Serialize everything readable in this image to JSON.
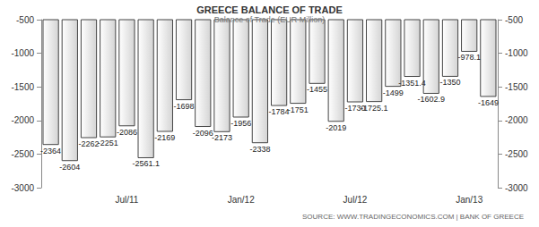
{
  "chart_data": {
    "type": "bar",
    "title": "GREECE BALANCE OF TRADE",
    "subtitle": "Balance of Trade (EUR Million)",
    "annotation": "SOURCE: WWW.TRADINGECONOMICS.COM | BANK OF GREECE",
    "categories": [
      null,
      null,
      null,
      null,
      "Jul/11",
      null,
      null,
      null,
      null,
      null,
      "Jan/12",
      null,
      null,
      null,
      null,
      null,
      "Jul/12",
      null,
      null,
      null,
      null,
      null,
      "Jan/13",
      null
    ],
    "values": [
      -2364,
      -2604,
      -2262,
      -2251,
      -2086,
      -2561.1,
      -2169,
      -1698,
      -2096,
      -2173,
      -1956,
      -2338,
      -1784,
      -1751,
      -1455,
      -2019,
      -1730,
      -1725.1,
      -1499,
      -1351.4,
      -1602.9,
      -1350,
      -978.1,
      -1649
    ],
    "color": "#d4d4d4",
    "ylim": [
      -3000,
      -500
    ],
    "yticks": [
      -3000,
      -2500,
      -2000,
      -1500,
      -1000,
      -500
    ],
    "grid": false,
    "data_labels": true
  }
}
